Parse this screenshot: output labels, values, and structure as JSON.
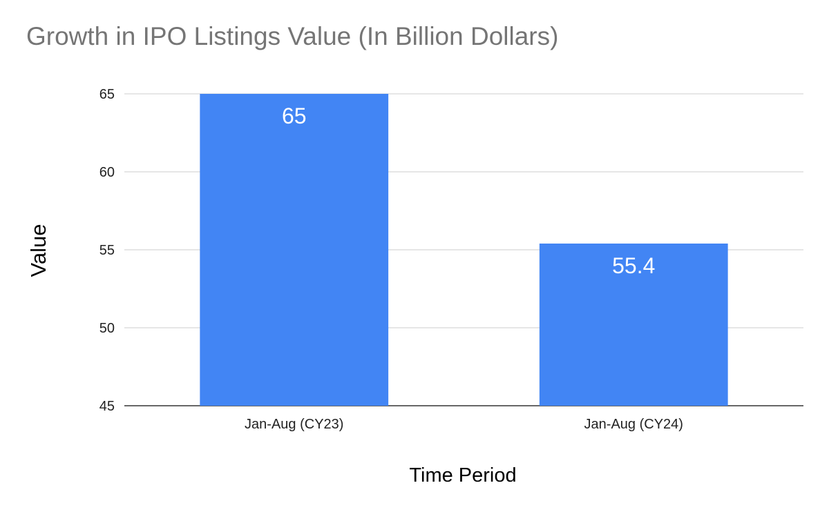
{
  "chart_data": {
    "type": "bar",
    "title": "Growth in IPO Listings Value (In Billion Dollars)",
    "xlabel": "Time Period",
    "ylabel": "Value",
    "categories": [
      "Jan-Aug (CY23)",
      "Jan-Aug (CY24)"
    ],
    "values": [
      65,
      55.4
    ],
    "data_labels": [
      "65",
      "55.4"
    ],
    "ylim": [
      45,
      65
    ],
    "yticks": [
      45,
      50,
      55,
      60,
      65
    ],
    "grid": true,
    "legend": "none",
    "bar_color": "#4285f4",
    "gridline_color": "#cccccc",
    "title_color": "#757575"
  }
}
